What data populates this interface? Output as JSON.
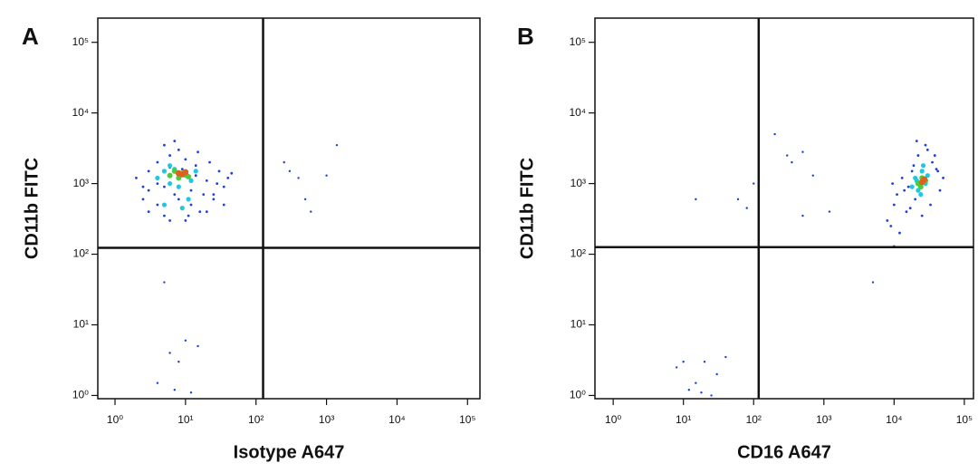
{
  "chart_data": [
    {
      "type": "scatter",
      "panel_label": "A",
      "xlabel": "Isotype A647",
      "ylabel": "CD11b FITC",
      "xscale": "log",
      "yscale": "log",
      "xlim": [
        0.57,
        150000
      ],
      "ylim": [
        0.9,
        220000
      ],
      "xticks": [
        {
          "value": 1,
          "label": "10⁰"
        },
        {
          "value": 10,
          "label": "10¹"
        },
        {
          "value": 100,
          "label": "10²"
        },
        {
          "value": 1000,
          "label": "10³"
        },
        {
          "value": 10000,
          "label": "10⁴"
        },
        {
          "value": 100000,
          "label": "10⁵"
        }
      ],
      "yticks": [
        {
          "value": 1,
          "label": "10⁰"
        },
        {
          "value": 10,
          "label": "10¹"
        },
        {
          "value": 100,
          "label": "10²"
        },
        {
          "value": 1000,
          "label": "10³"
        },
        {
          "value": 10000,
          "label": "10⁴"
        },
        {
          "value": 100000,
          "label": "10⁵"
        }
      ],
      "gates": {
        "x": 126,
        "y": 123
      },
      "series": [
        {
          "color": "#1f3fd6",
          "x": [
            2,
            2.5,
            3,
            3,
            4,
            4,
            5,
            5,
            6,
            6,
            7,
            8,
            9,
            10,
            12,
            14,
            16,
            20,
            25,
            30,
            35,
            40,
            3,
            4,
            5,
            6,
            8,
            10,
            12,
            15,
            20,
            25,
            2.5,
            35,
            7,
            9,
            11,
            14,
            18,
            22,
            28,
            45
          ],
          "y": [
            1200,
            600,
            1500,
            400,
            2000,
            500,
            900,
            350,
            2500,
            300,
            700,
            3000,
            450,
            2200,
            500,
            1800,
            400,
            1100,
            600,
            1500,
            900,
            1200,
            800,
            1000,
            3500,
            1700,
            600,
            300,
            800,
            2800,
            400,
            700,
            900,
            500,
            4000,
            1600,
            350,
            1300,
            700,
            2000,
            1000,
            1400
          ]
        },
        {
          "color": "#1f3fd6",
          "x": [
            5,
            6,
            8,
            10,
            15,
            4,
            7,
            12,
            300,
            400,
            500,
            1000,
            1400,
            600,
            250
          ],
          "y": [
            40,
            4,
            3,
            6,
            5,
            1.5,
            1.2,
            1.1,
            1500,
            1200,
            600,
            1300,
            3500,
            400,
            2000
          ]
        },
        {
          "color": "#1fc8e0",
          "x": [
            4,
            5,
            6,
            7,
            8,
            10,
            12,
            14,
            5,
            9,
            11,
            6
          ],
          "y": [
            1200,
            1500,
            1000,
            1600,
            900,
            1300,
            1100,
            1500,
            500,
            450,
            600,
            1800
          ]
        },
        {
          "color": "#4ccc3a",
          "x": [
            6,
            7,
            8,
            9,
            10,
            11
          ],
          "y": [
            1300,
            1500,
            1200,
            1400,
            1350,
            1250
          ]
        },
        {
          "color": "#e06020",
          "x": [
            8,
            9,
            10
          ],
          "y": [
            1400,
            1350,
            1450
          ]
        }
      ]
    },
    {
      "type": "scatter",
      "panel_label": "B",
      "xlabel": "CD16 A647",
      "ylabel": "CD11b FITC",
      "xscale": "log",
      "yscale": "log",
      "xlim": [
        0.55,
        135000
      ],
      "ylim": [
        0.9,
        220000
      ],
      "xticks": [
        {
          "value": 1,
          "label": "10⁰"
        },
        {
          "value": 10,
          "label": "10¹"
        },
        {
          "value": 100,
          "label": "10²"
        },
        {
          "value": 1000,
          "label": "10³"
        },
        {
          "value": 10000,
          "label": "10⁴"
        },
        {
          "value": 100000,
          "label": "10⁵"
        }
      ],
      "yticks": [
        {
          "value": 1,
          "label": "10⁰"
        },
        {
          "value": 10,
          "label": "10¹"
        },
        {
          "value": 100,
          "label": "10²"
        },
        {
          "value": 1000,
          "label": "10³"
        },
        {
          "value": 10000,
          "label": "10⁴"
        },
        {
          "value": 100000,
          "label": "10⁵"
        }
      ],
      "gates": {
        "x": 118,
        "y": 126
      },
      "series": [
        {
          "color": "#1f3fd6",
          "x": [
            8000,
            9000,
            10000,
            12000,
            14000,
            15000,
            18000,
            20000,
            22000,
            25000,
            30000,
            35000,
            40000,
            45000,
            50000,
            11000,
            13000,
            16000,
            19000,
            28000,
            33000,
            38000,
            9500,
            17000,
            21000,
            42000
          ],
          "y": [
            300,
            250,
            500,
            200,
            800,
            400,
            1500,
            600,
            2500,
            350,
            3000,
            2000,
            1600,
            800,
            1200,
            700,
            1200,
            900,
            1800,
            3500,
            500,
            2500,
            1000,
            450,
            4000,
            1500
          ]
        },
        {
          "color": "#1f3fd6",
          "x": [
            15,
            60,
            100,
            200,
            300,
            500,
            700,
            500,
            1200,
            5000,
            10000,
            8,
            10,
            15,
            20,
            30,
            40,
            12,
            18,
            25,
            350,
            80
          ],
          "y": [
            600,
            600,
            1000,
            5000,
            2500,
            2800,
            1300,
            350,
            400,
            40,
            130,
            2.5,
            3,
            1.5,
            3,
            2,
            3.5,
            1.2,
            1.1,
            1,
            2000,
            450
          ]
        },
        {
          "color": "#1fc8e0",
          "x": [
            18000,
            20000,
            22000,
            25000,
            28000,
            30000,
            24000,
            26000,
            21000
          ],
          "y": [
            900,
            1200,
            800,
            1500,
            1000,
            1300,
            700,
            1800,
            1100
          ]
        },
        {
          "color": "#4ccc3a",
          "x": [
            22000,
            25000,
            28000,
            24000
          ],
          "y": [
            1000,
            1200,
            1100,
            900
          ]
        },
        {
          "color": "#e06020",
          "x": [
            25000,
            27000
          ],
          "y": [
            1050,
            1150
          ]
        }
      ]
    }
  ]
}
